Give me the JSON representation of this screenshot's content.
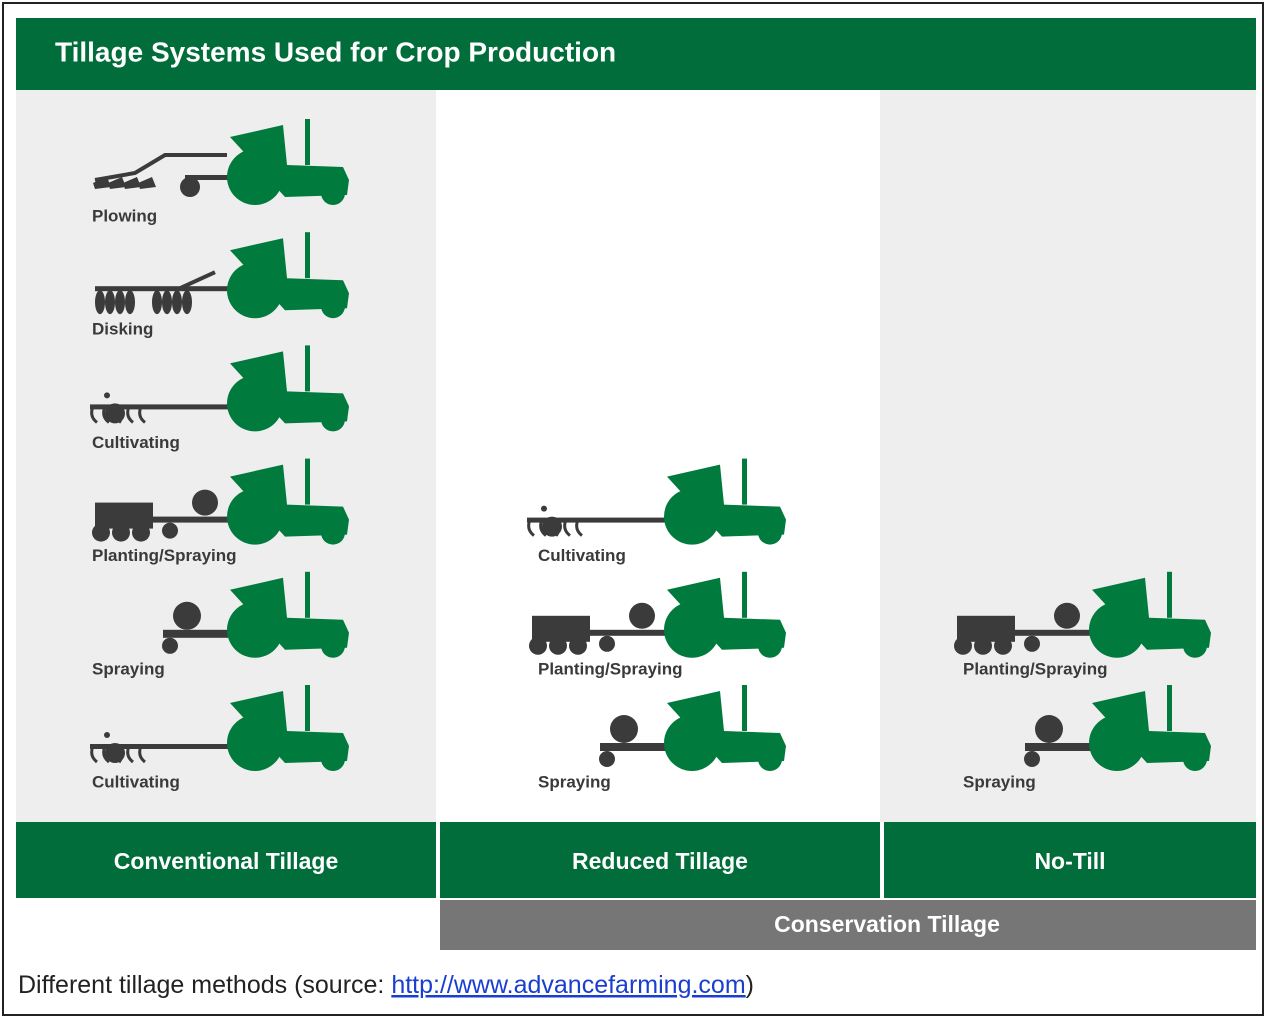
{
  "title": "Tillage Systems Used for Crop Production",
  "columns": [
    {
      "label": "Conventional Tillage",
      "operations": [
        "Plowing",
        "Disking",
        "Cultivating",
        "Planting/Spraying",
        "Spraying",
        "Cultivating"
      ]
    },
    {
      "label": "Reduced Tillage",
      "operations": [
        "Cultivating",
        "Planting/Spraying",
        "Spraying"
      ]
    },
    {
      "label": "No-Till",
      "operations": [
        "Planting/Spraying",
        "Spraying"
      ]
    }
  ],
  "group_label": "Conservation Tillage",
  "caption": {
    "before": "Different tillage methods (source: ",
    "link": "http://www.advancefarming.com",
    "after": ")"
  }
}
